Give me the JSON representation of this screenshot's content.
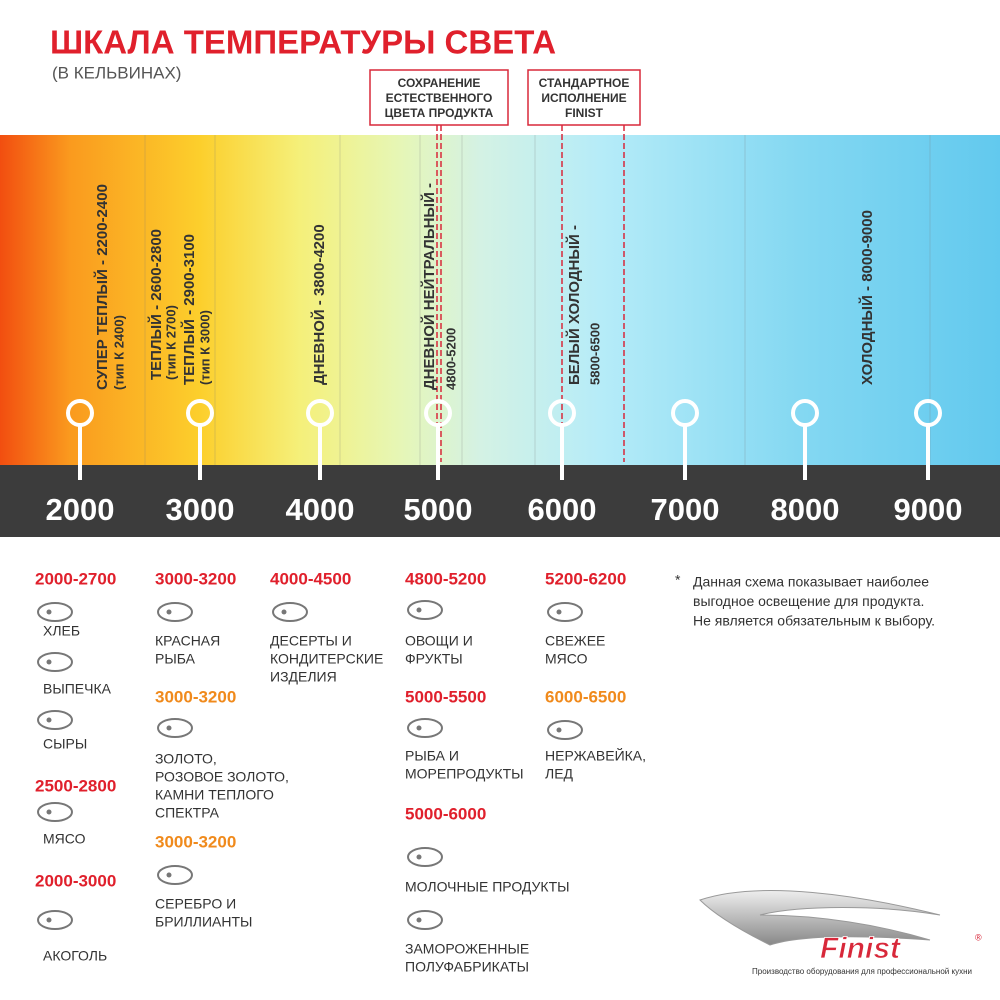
{
  "header": {
    "title": "ШКАЛА ТЕМПЕРАТУРЫ СВЕТА",
    "subtitle": "(В КЕЛЬВИНАХ)"
  },
  "callouts": [
    {
      "lines": [
        "СОХРАНЕНИЕ",
        "ЕСТЕСТВЕННОГО",
        "ЦВЕТА ПРОДУКТА"
      ]
    },
    {
      "lines": [
        "СТАНДАРТНОЕ",
        "ИСПОЛНЕНИЕ",
        "FINIST"
      ]
    }
  ],
  "zones": [
    {
      "lines": [
        "СУПЕР ТЕПЛЫЙ - 2200-2400",
        "(тип К 2400)"
      ]
    },
    {
      "lines": [
        "ТЕПЛЫЙ - 2600-2800",
        "(тип К 2700)"
      ]
    },
    {
      "lines": [
        "ТЕПЛЫЙ - 2900-3100",
        "(тип К 3000)"
      ]
    },
    {
      "lines": [
        "ДНЕВНОЙ - 3800-4200"
      ]
    },
    {
      "lines": [
        "ДНЕВНОЙ НЕЙТРАЛЬНЫЙ -",
        "4800-5200"
      ]
    },
    {
      "lines": [
        "БЕЛЫЙ ХОЛОДНЫЙ -",
        "5800-6500"
      ]
    },
    {
      "lines": [
        "ХОЛОДНЫЙ - 8000-9000"
      ]
    }
  ],
  "scale": [
    "2000",
    "3000",
    "4000",
    "5000",
    "6000",
    "7000",
    "8000",
    "9000"
  ],
  "groups": [
    {
      "range": "2000-2700",
      "color": "#e0202c",
      "items": [
        {
          "lines": [
            "ХЛЕБ"
          ]
        },
        {
          "lines": [
            "ВЫПЕЧКА"
          ]
        },
        {
          "lines": [
            "СЫРЫ"
          ]
        }
      ]
    },
    {
      "range": "2500-2800",
      "color": "#e0202c",
      "items": [
        {
          "lines": [
            "МЯСО"
          ]
        }
      ]
    },
    {
      "range": "2000-3000",
      "color": "#e0202c",
      "items": [
        {
          "lines": [
            "АКОГОЛЬ"
          ]
        }
      ]
    },
    {
      "range": "3000-3200",
      "color": "#e0202c",
      "items": [
        {
          "lines": [
            "КРАСНАЯ",
            "РЫБА"
          ]
        }
      ]
    },
    {
      "range": "3000-3200",
      "color": "#f08a1c",
      "items": [
        {
          "lines": [
            "ЗОЛОТО,",
            "РОЗОВОЕ ЗОЛОТО,",
            "КАМНИ ТЕПЛОГО",
            "СПЕКТРА"
          ]
        }
      ]
    },
    {
      "range": "3000-3200",
      "color": "#f08a1c",
      "items": [
        {
          "lines": [
            "СЕРЕБРО И",
            "БРИЛЛИАНТЫ"
          ]
        }
      ]
    },
    {
      "range": "4000-4500",
      "color": "#e0202c",
      "items": [
        {
          "lines": [
            "ДЕСЕРТЫ И",
            "КОНДИТЕРСКИЕ",
            "ИЗДЕЛИЯ"
          ]
        }
      ]
    },
    {
      "range": "4800-5200",
      "color": "#e0202c",
      "items": [
        {
          "lines": [
            "ОВОЩИ И",
            "ФРУКТЫ"
          ]
        }
      ]
    },
    {
      "range": "5000-5500",
      "color": "#e0202c",
      "items": [
        {
          "lines": [
            "РЫБА И",
            "МОРЕПРОДУКТЫ"
          ]
        }
      ]
    },
    {
      "range": "5000-6000",
      "color": "#e0202c",
      "items": [
        {
          "lines": [
            "МОЛОЧНЫЕ ПРОДУКТЫ"
          ]
        },
        {
          "lines": [
            "ЗАМОРОЖЕННЫЕ",
            "ПОЛУФАБРИКАТЫ"
          ]
        }
      ]
    },
    {
      "range": "5200-6200",
      "color": "#e0202c",
      "items": [
        {
          "lines": [
            "СВЕЖЕЕ",
            "МЯСО"
          ]
        }
      ]
    },
    {
      "range": "6000-6500",
      "color": "#f08a1c",
      "items": [
        {
          "lines": [
            "НЕРЖАВЕЙКА,",
            "ЛЕД"
          ]
        }
      ]
    }
  ],
  "note": {
    "mark": "*",
    "lines": [
      "Данная схема показывает наиболее",
      "выгодное освещение для продукта.",
      "Не является обязательным к выбору."
    ]
  },
  "logo": {
    "name": "Finist",
    "registered": "®",
    "tagline": "Производство оборудования для профессиональной кухни"
  }
}
